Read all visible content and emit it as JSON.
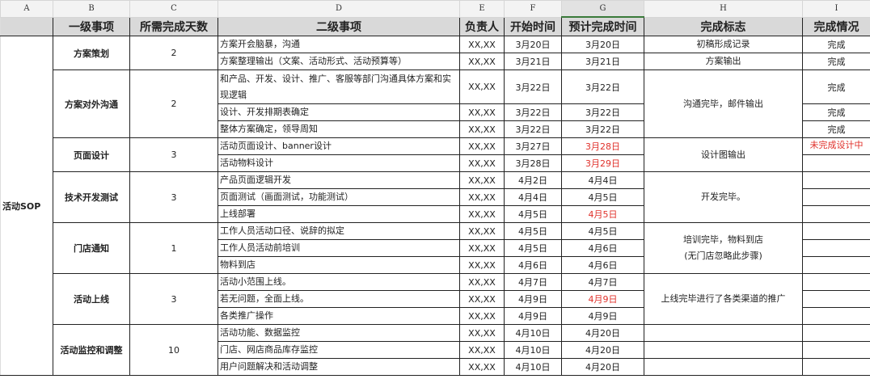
{
  "column_letters": [
    "A",
    "B",
    "C",
    "D",
    "E",
    "F",
    "G",
    "H",
    "I"
  ],
  "selected_column": "G",
  "headers": [
    "",
    "一级事项",
    "所需完成天数",
    "二级事项",
    "负责人",
    "开始时间",
    "预计完成时间",
    "完成标志",
    "完成情况"
  ],
  "group_label": "活动SOP",
  "colors": {
    "overdue": "#e0302a",
    "header_bg": "#d9d9d9"
  },
  "groups": [
    {
      "name": "方案策划",
      "days": "2"
    },
    {
      "name": "方案对外沟通",
      "days": "2"
    },
    {
      "name": "页面设计",
      "days": "3"
    },
    {
      "name": "技术开发测试",
      "days": "3"
    },
    {
      "name": "门店通知",
      "days": "1"
    },
    {
      "name": "活动上线",
      "days": "3"
    },
    {
      "name": "活动监控和调整",
      "days": "10"
    }
  ],
  "marks": [
    "初稿形成记录",
    "方案输出",
    "沟通完毕，邮件输出",
    "设计图输出",
    "开发完毕。",
    "培训完毕，物料到店\n(无门店忽略此步骤)",
    "上线完毕进行了各类渠道的推广",
    "",
    "",
    ""
  ],
  "rows": [
    {
      "task": "方案开会脑暴，沟通",
      "owner": "XX,XX",
      "start": "3月20日",
      "due": "3月20日",
      "status": "完成"
    },
    {
      "task": "方案整理输出（文案、活动形式、活动预算等）",
      "owner": "XX,XX",
      "start": "3月21日",
      "due": "3月21日",
      "status": "完成"
    },
    {
      "task": "和产品、开发、设计、推广、客服等部门沟通具体方案和实现逻辑",
      "owner": "XX,XX",
      "start": "3月22日",
      "due": "3月22日",
      "status": "完成"
    },
    {
      "task": "设计、开发排期表确定",
      "owner": "XX,XX",
      "start": "3月22日",
      "due": "3月22日",
      "status": "完成"
    },
    {
      "task": "整体方案确定，领导周知",
      "owner": "XX,XX",
      "start": "3月22日",
      "due": "3月22日",
      "status": "完成"
    },
    {
      "task": "活动页面设计、banner设计",
      "owner": "XX,XX",
      "start": "3月27日",
      "due": "3月28日",
      "due_overdue": true,
      "status": "未完成设计中",
      "status_overdue": true
    },
    {
      "task": "活动物料设计",
      "owner": "XX,XX",
      "start": "3月28日",
      "due": "3月29日",
      "due_overdue": true,
      "status": ""
    },
    {
      "task": "产品页面逻辑开发",
      "owner": "XX,XX",
      "start": "4月2日",
      "due": "4月4日",
      "status": ""
    },
    {
      "task": "页面测试（画面测试，功能测试）",
      "owner": "XX,XX",
      "start": "4月4日",
      "due": "4月5日",
      "status": ""
    },
    {
      "task": "上线部署",
      "owner": "XX,XX",
      "start": "4月5日",
      "due": "4月5日",
      "due_overdue": true,
      "status": ""
    },
    {
      "task": "工作人员活动口径、说辞的拟定",
      "owner": "XX,XX",
      "start": "4月5日",
      "due": "4月5日",
      "status": ""
    },
    {
      "task": "工作人员活动前培训",
      "owner": "XX,XX",
      "start": "4月5日",
      "due": "4月6日",
      "status": ""
    },
    {
      "task": "物料到店",
      "owner": "XX,XX",
      "start": "4月6日",
      "due": "4月6日",
      "status": ""
    },
    {
      "task": "活动小范围上线。",
      "owner": "XX,XX",
      "start": "4月7日",
      "due": "4月7日",
      "status": ""
    },
    {
      "task": "若无问题，全面上线。",
      "owner": "XX,XX",
      "start": "4月9日",
      "due": "4月9日",
      "due_overdue": true,
      "status": ""
    },
    {
      "task": "各类推广操作",
      "owner": "XX,XX",
      "start": "4月9日",
      "due": "4月9日",
      "status": ""
    },
    {
      "task": "活动功能、数据监控",
      "owner": "XX,XX",
      "start": "4月10日",
      "due": "4月20日",
      "status": ""
    },
    {
      "task": "门店、网店商品库存监控",
      "owner": "XX,XX",
      "start": "4月10日",
      "due": "4月20日",
      "status": ""
    },
    {
      "task": "用户问题解决和活动调整",
      "owner": "XX,XX",
      "start": "4月10日",
      "due": "4月20日",
      "status": ""
    }
  ]
}
